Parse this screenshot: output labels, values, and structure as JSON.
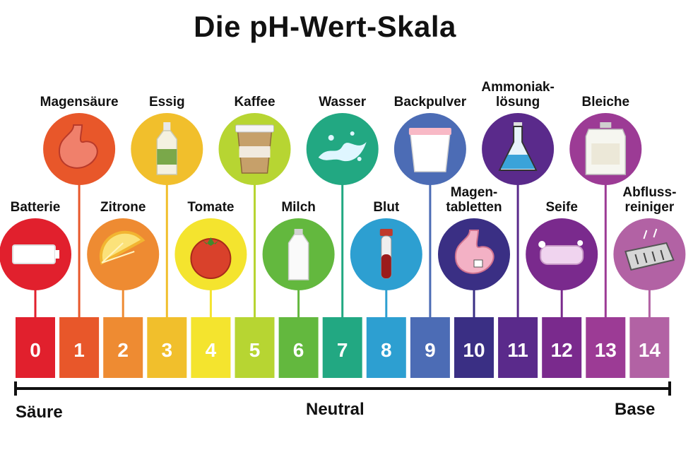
{
  "title": "Die pH-Wert-Skala",
  "scale": {
    "acid_label": "Säure",
    "neutral_label": "Neutral",
    "base_label": "Base"
  },
  "items": [
    {
      "ph": 0,
      "label": [
        "Batterie"
      ],
      "color": "#e1202d",
      "icon": "battery-icon"
    },
    {
      "ph": 1,
      "label": [
        "Magensäure"
      ],
      "color": "#e8572a",
      "icon": "stomach-icon"
    },
    {
      "ph": 2,
      "label": [
        "Zitrone"
      ],
      "color": "#ee8b32",
      "icon": "lemon-icon"
    },
    {
      "ph": 3,
      "label": [
        "Essig"
      ],
      "color": "#f1bf2c",
      "icon": "vinegar-bottle-icon"
    },
    {
      "ph": 4,
      "label": [
        "Tomate"
      ],
      "color": "#f4e42e",
      "icon": "tomato-icon"
    },
    {
      "ph": 5,
      "label": [
        "Kaffee"
      ],
      "color": "#b7d532",
      "icon": "coffee-cup-icon"
    },
    {
      "ph": 6,
      "label": [
        "Milch"
      ],
      "color": "#63b83e",
      "icon": "milk-bottle-icon"
    },
    {
      "ph": 7,
      "label": [
        "Wasser"
      ],
      "color": "#22a882",
      "icon": "water-splash-icon"
    },
    {
      "ph": 8,
      "label": [
        "Blut"
      ],
      "color": "#2d9fd1",
      "icon": "blood-tube-icon"
    },
    {
      "ph": 9,
      "label": [
        "Backpulver"
      ],
      "color": "#4c6cb5",
      "icon": "baking-powder-icon"
    },
    {
      "ph": 10,
      "label": [
        "Magen-",
        "tabletten"
      ],
      "color": "#3a2f84",
      "icon": "antacid-stomach-icon"
    },
    {
      "ph": 11,
      "label": [
        "Ammoniak-",
        "lösung"
      ],
      "color": "#5a2a8b",
      "icon": "flask-icon"
    },
    {
      "ph": 12,
      "label": [
        "Seife"
      ],
      "color": "#7a2a8d",
      "icon": "soap-icon"
    },
    {
      "ph": 13,
      "label": [
        "Bleiche"
      ],
      "color": "#9c3b95",
      "icon": "bleach-jug-icon"
    },
    {
      "ph": 14,
      "label": [
        "Abfluss-",
        "reiniger"
      ],
      "color": "#b262a4",
      "icon": "drain-cleaner-icon"
    }
  ]
}
